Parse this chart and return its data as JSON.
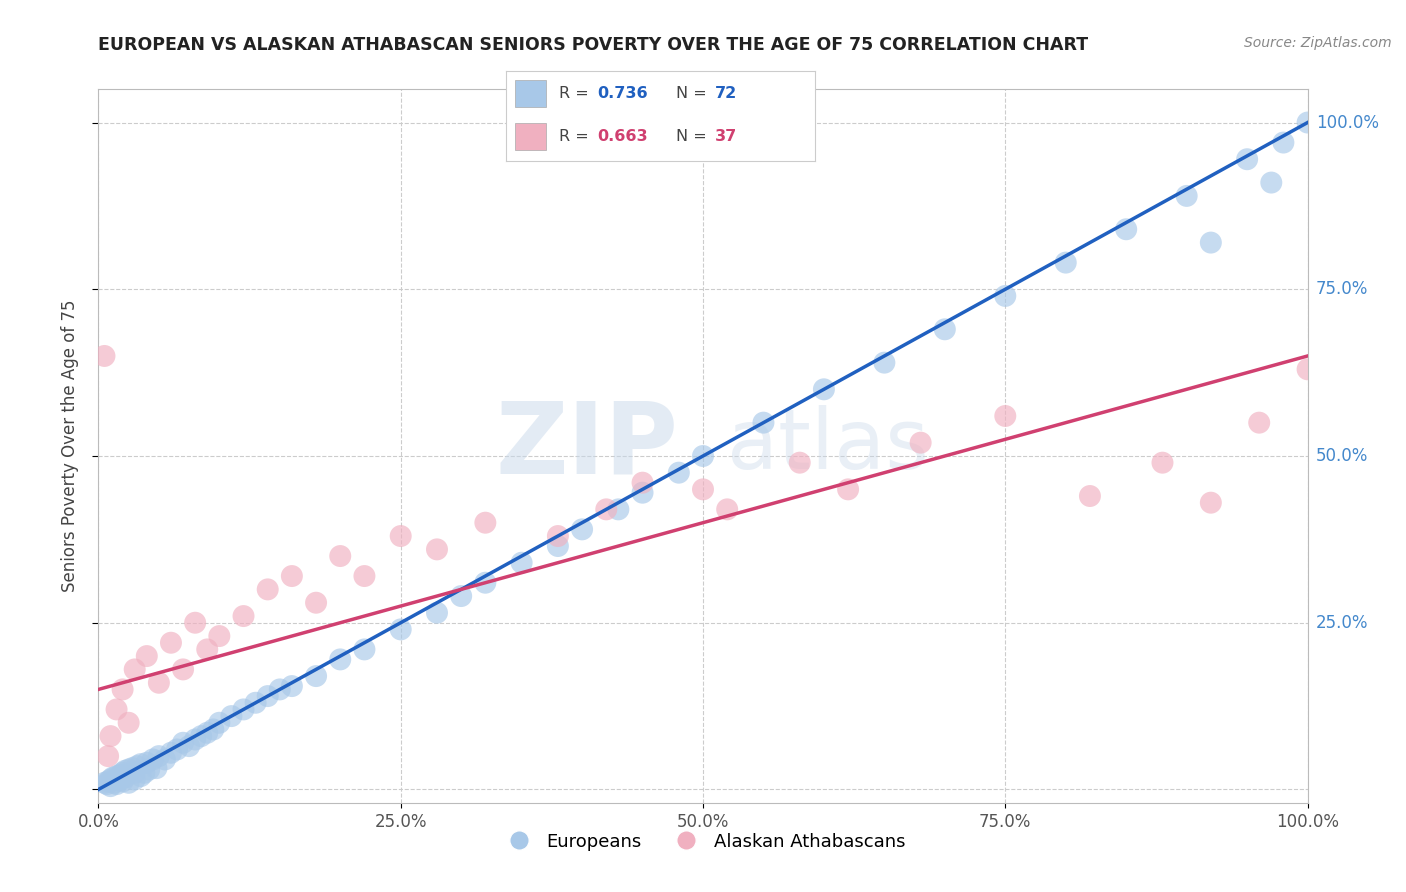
{
  "title": "EUROPEAN VS ALASKAN ATHABASCAN SENIORS POVERTY OVER THE AGE OF 75 CORRELATION CHART",
  "source": "Source: ZipAtlas.com",
  "ylabel": "Seniors Poverty Over the Age of 75",
  "xlim": [
    0,
    1.0
  ],
  "ylim": [
    -0.02,
    1.05
  ],
  "xticks": [
    0.0,
    0.25,
    0.5,
    0.75,
    1.0
  ],
  "xticklabels": [
    "0.0%",
    "25.0%",
    "50.0%",
    "75.0%",
    "100.0%"
  ],
  "yticks": [
    0.0,
    0.25,
    0.5,
    0.75,
    1.0
  ],
  "yticklabels_left": [
    "",
    "",
    "",
    "",
    ""
  ],
  "yticklabels_right": [
    "",
    "25.0%",
    "50.0%",
    "75.0%",
    "100.0%"
  ],
  "blue_R": 0.736,
  "blue_N": 72,
  "pink_R": 0.663,
  "pink_N": 37,
  "blue_color": "#A8C8E8",
  "pink_color": "#F0B0C0",
  "blue_line_color": "#2060C0",
  "pink_line_color": "#D04070",
  "watermark_zip": "ZIP",
  "watermark_atlas": "atlas",
  "blue_line_x0": 0.0,
  "blue_line_y0": 0.0,
  "blue_line_x1": 1.0,
  "blue_line_y1": 1.0,
  "pink_line_x0": 0.0,
  "pink_line_y0": 0.15,
  "pink_line_x1": 1.0,
  "pink_line_y1": 0.65,
  "blue_scatter_x": [
    0.005,
    0.007,
    0.008,
    0.01,
    0.01,
    0.012,
    0.013,
    0.015,
    0.015,
    0.018,
    0.018,
    0.02,
    0.02,
    0.022,
    0.022,
    0.025,
    0.025,
    0.028,
    0.03,
    0.03,
    0.032,
    0.035,
    0.035,
    0.038,
    0.04,
    0.042,
    0.045,
    0.048,
    0.05,
    0.055,
    0.06,
    0.065,
    0.07,
    0.075,
    0.08,
    0.085,
    0.09,
    0.095,
    0.1,
    0.11,
    0.12,
    0.13,
    0.14,
    0.15,
    0.16,
    0.18,
    0.2,
    0.22,
    0.25,
    0.28,
    0.3,
    0.32,
    0.35,
    0.38,
    0.4,
    0.43,
    0.45,
    0.48,
    0.5,
    0.55,
    0.6,
    0.65,
    0.7,
    0.75,
    0.8,
    0.85,
    0.9,
    0.92,
    0.95,
    0.97,
    0.98,
    1.0
  ],
  "blue_scatter_y": [
    0.01,
    0.008,
    0.012,
    0.015,
    0.005,
    0.018,
    0.01,
    0.02,
    0.008,
    0.022,
    0.015,
    0.025,
    0.012,
    0.028,
    0.018,
    0.03,
    0.01,
    0.032,
    0.015,
    0.025,
    0.035,
    0.02,
    0.038,
    0.025,
    0.04,
    0.03,
    0.045,
    0.032,
    0.05,
    0.045,
    0.055,
    0.06,
    0.07,
    0.065,
    0.075,
    0.08,
    0.085,
    0.09,
    0.1,
    0.11,
    0.12,
    0.13,
    0.14,
    0.15,
    0.155,
    0.17,
    0.195,
    0.21,
    0.24,
    0.265,
    0.29,
    0.31,
    0.34,
    0.365,
    0.39,
    0.42,
    0.445,
    0.475,
    0.5,
    0.55,
    0.6,
    0.64,
    0.69,
    0.74,
    0.79,
    0.84,
    0.89,
    0.82,
    0.945,
    0.91,
    0.97,
    1.0
  ],
  "pink_scatter_x": [
    0.005,
    0.008,
    0.01,
    0.015,
    0.02,
    0.025,
    0.03,
    0.04,
    0.05,
    0.06,
    0.07,
    0.08,
    0.09,
    0.1,
    0.12,
    0.14,
    0.16,
    0.18,
    0.2,
    0.22,
    0.25,
    0.28,
    0.32,
    0.38,
    0.42,
    0.45,
    0.5,
    0.52,
    0.58,
    0.62,
    0.68,
    0.75,
    0.82,
    0.88,
    0.92,
    0.96,
    1.0
  ],
  "pink_scatter_y": [
    0.65,
    0.05,
    0.08,
    0.12,
    0.15,
    0.1,
    0.18,
    0.2,
    0.16,
    0.22,
    0.18,
    0.25,
    0.21,
    0.23,
    0.26,
    0.3,
    0.32,
    0.28,
    0.35,
    0.32,
    0.38,
    0.36,
    0.4,
    0.38,
    0.42,
    0.46,
    0.45,
    0.42,
    0.49,
    0.45,
    0.52,
    0.56,
    0.44,
    0.49,
    0.43,
    0.55,
    0.63
  ],
  "background_color": "#FFFFFF",
  "grid_color": "#CCCCCC"
}
